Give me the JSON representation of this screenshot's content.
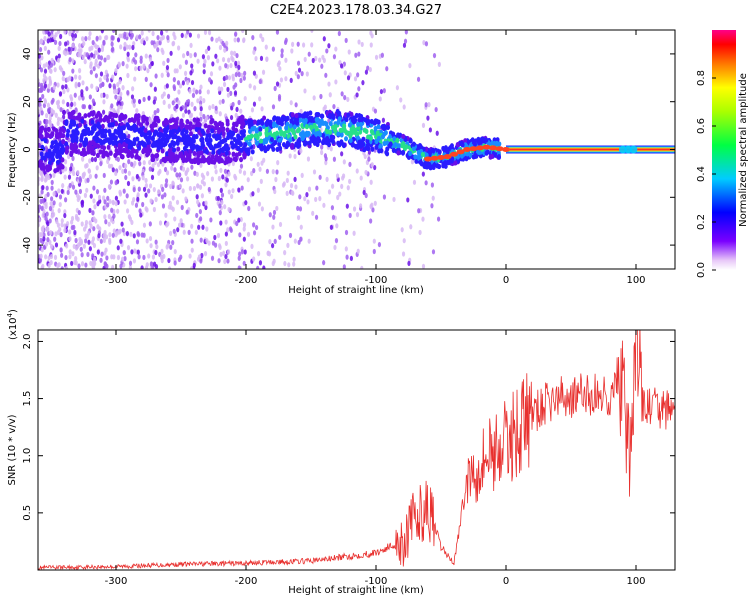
{
  "title": "C2E4.2023.178.03.34.G27",
  "colors": {
    "snr_line": "#e8302e",
    "spec_band": "#e33",
    "axis": "#000000"
  },
  "chart_data": [
    {
      "type": "heatmap",
      "xlabel": "Height of straight line (km)",
      "ylabel": "Frequency (Hz)",
      "xlim": [
        -360,
        130
      ],
      "ylim": [
        -50,
        50
      ],
      "xticks": [
        {
          "value": -300,
          "label": "-300"
        },
        {
          "value": -200,
          "label": "-200"
        },
        {
          "value": -100,
          "label": "-100"
        },
        {
          "value": 0,
          "label": "0"
        },
        {
          "value": 100,
          "label": "100"
        }
      ],
      "yticks": [
        {
          "value": -40,
          "label": "-40"
        },
        {
          "value": -20,
          "label": "-20"
        },
        {
          "value": 0,
          "label": "0"
        },
        {
          "value": 20,
          "label": "20"
        },
        {
          "value": 40,
          "label": "40"
        }
      ],
      "ridge": [
        {
          "x": -340,
          "y": 7
        },
        {
          "x": -300,
          "y": 6
        },
        {
          "x": -260,
          "y": 4
        },
        {
          "x": -220,
          "y": 3
        },
        {
          "x": -190,
          "y": 6
        },
        {
          "x": -160,
          "y": 8
        },
        {
          "x": -130,
          "y": 9
        },
        {
          "x": -100,
          "y": 6
        },
        {
          "x": -80,
          "y": 2
        },
        {
          "x": -60,
          "y": -4
        },
        {
          "x": -45,
          "y": -3
        },
        {
          "x": -30,
          "y": 0
        },
        {
          "x": -15,
          "y": 1
        },
        {
          "x": 0,
          "y": 0
        },
        {
          "x": 130,
          "y": 0
        }
      ],
      "colorbar": {
        "label": "Normalized spectral amplitude",
        "range": [
          0,
          1
        ],
        "ticks": [
          {
            "value": 0.0,
            "label": "0.0"
          },
          {
            "value": 0.2,
            "label": "0.2"
          },
          {
            "value": 0.4,
            "label": "0.4"
          },
          {
            "value": 0.6,
            "label": "0.6"
          },
          {
            "value": 0.8,
            "label": "0.8"
          }
        ]
      }
    },
    {
      "type": "line",
      "xlabel": "Height of straight line (km)",
      "ylabel": "SNR (10 * v/v)",
      "y_multiplier_label": "(x10",
      "y_multiplier_exp": "4",
      "y_multiplier_close": ")",
      "xlim": [
        -360,
        130
      ],
      "ylim": [
        0,
        21000
      ],
      "xticks": [
        {
          "value": -300,
          "label": "-300"
        },
        {
          "value": -200,
          "label": "-200"
        },
        {
          "value": -100,
          "label": "-100"
        },
        {
          "value": 0,
          "label": "0"
        },
        {
          "value": 100,
          "label": "100"
        }
      ],
      "yticks": [
        {
          "value": 5000,
          "label": "0.5"
        },
        {
          "value": 10000,
          "label": "1.0"
        },
        {
          "value": 15000,
          "label": "1.5"
        },
        {
          "value": 20000,
          "label": "2.0"
        }
      ],
      "series": [
        {
          "x": [
            -360,
            -300,
            -250,
            -200,
            -150,
            -120,
            -100,
            -80,
            -70,
            -60,
            -50,
            -40,
            -30,
            -20,
            -10,
            0,
            10,
            20,
            30,
            40,
            60,
            80,
            90,
            95,
            100,
            105,
            110,
            130
          ],
          "y": [
            200,
            300,
            500,
            600,
            800,
            1200,
            1500,
            2500,
            4500,
            5500,
            2000,
            600,
            8000,
            9500,
            10500,
            11000,
            12500,
            13500,
            14500,
            15000,
            15300,
            15300,
            16000,
            8000,
            21000,
            14500,
            14300,
            13800
          ]
        }
      ]
    }
  ]
}
